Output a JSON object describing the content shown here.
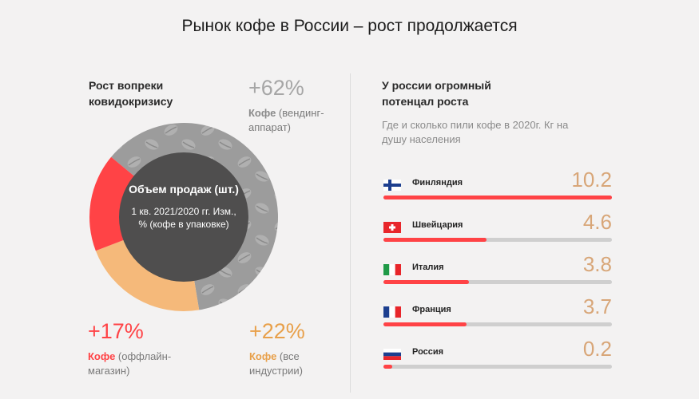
{
  "title": "Рынок кофе в России – рост продолжается",
  "left": {
    "heading": "Рост вопреки ковидокризису",
    "center": {
      "title": "Объем продаж (шт.)",
      "subtitle": "1 кв. 2021/2020 гг. Изм., % (кофе в упаковке)"
    },
    "stats": [
      {
        "pct": "+62%",
        "bold": "Кофе",
        "rest": " (вендинг-аппарат)"
      },
      {
        "pct": "+17%",
        "bold": "Кофе",
        "rest": " (оффлайн-магазин)"
      },
      {
        "pct": "+22%",
        "bold": "Кофе",
        "rest": " (все индустрии)"
      }
    ]
  },
  "right": {
    "heading": "У россии огромный потенцал роста",
    "subtitle": "Где и сколько пили кофе в 2020г. Кг на душу населения"
  },
  "chart_data": [
    {
      "type": "pie",
      "categories": [
        "Кофе (вендинг-аппарат)",
        "Кофе (все индустрии)",
        "Кофе (оффлайн-магазин)"
      ],
      "values": [
        62,
        22,
        17
      ],
      "colors": [
        "#9c9c9c",
        "#f5b97a",
        "#ff4346"
      ],
      "center_color": "#4f4e4e"
    },
    {
      "type": "bar",
      "orientation": "horizontal",
      "categories": [
        "Финляндия",
        "Швейцария",
        "Италия",
        "Франция",
        "Россия"
      ],
      "values": [
        10.2,
        4.6,
        3.8,
        3.7,
        0.2
      ],
      "value_labels": [
        "10.2",
        "4.6",
        "3.8",
        "3.7",
        "0.2"
      ],
      "xlim": [
        0,
        10.2
      ],
      "bar_color": "#ff4346",
      "track_color": "#cfcfcf",
      "flags": [
        "flag-finland",
        "flag-switzerland",
        "flag-italy",
        "flag-france",
        "flag-russia"
      ]
    }
  ]
}
